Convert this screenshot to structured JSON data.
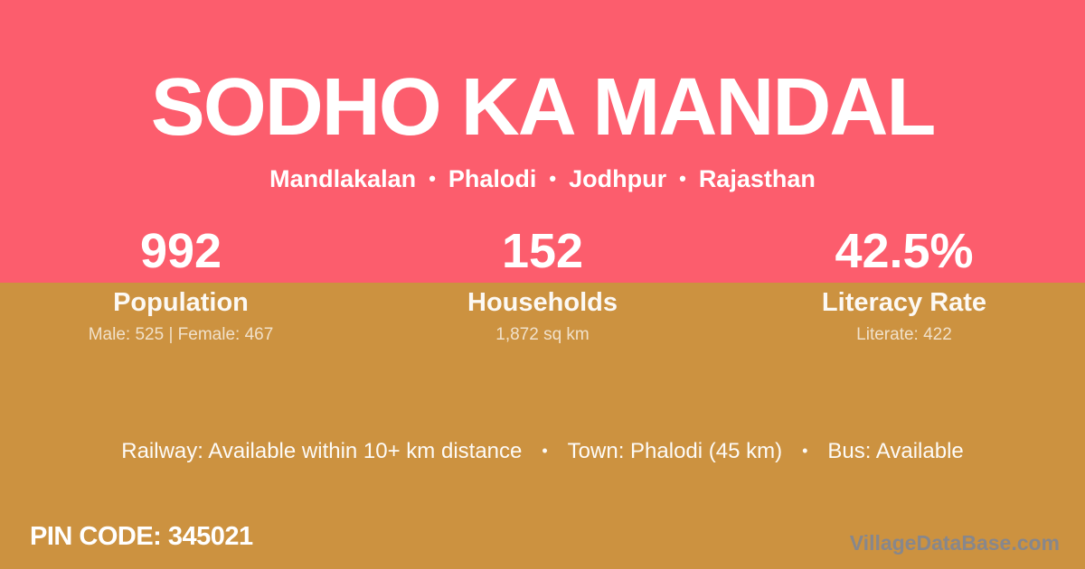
{
  "header": {
    "title": "SODHO KA MANDAL",
    "breadcrumb": [
      "Mandlakalan",
      "Phalodi",
      "Jodhpur",
      "Rajasthan"
    ],
    "separator": "•"
  },
  "stats": [
    {
      "value": "992",
      "label": "Population",
      "detail": "Male: 525 | Female: 467"
    },
    {
      "value": "152",
      "label": "Households",
      "detail": "1,872 sq km"
    },
    {
      "value": "42.5%",
      "label": "Literacy Rate",
      "detail": "Literate: 422"
    }
  ],
  "amenities": {
    "items": [
      "Railway: Available within 10+ km distance",
      "Town: Phalodi (45 km)",
      "Bus: Available"
    ],
    "separator": "•"
  },
  "footer": {
    "pin_code": "PIN CODE: 345021",
    "watermark": "VillageDataBase.com"
  },
  "colors": {
    "background_top": "#fc5d6d",
    "background_bottom": "#cc9240",
    "text_primary": "#ffffff",
    "watermark_gray": "#87878c"
  }
}
